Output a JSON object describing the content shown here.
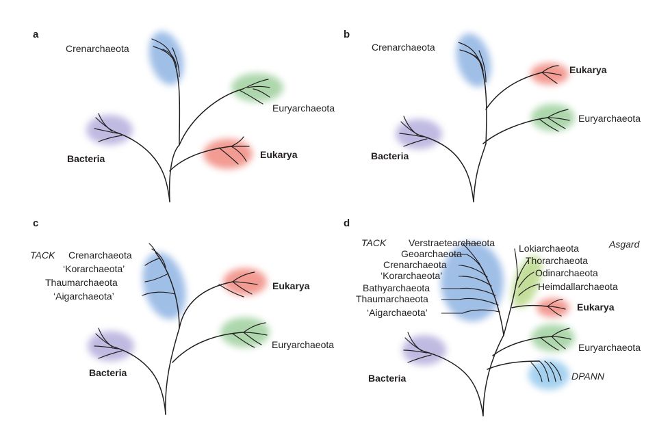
{
  "colors": {
    "crenarchaeota": "#8fb4e3",
    "euryarchaeota": "#9fd09f",
    "eukarya": "#f08a80",
    "bacteria": "#b9b3de",
    "tack": "#8fb4e3",
    "asgard": "#b9d98a",
    "dpann": "#9ccdee",
    "line": "#231f20"
  },
  "panels": {
    "a": {
      "letter": "a",
      "crenarchaeota": "Crenarchaeota",
      "euryarchaeota": "Euryarchaeota",
      "bacteria": "Bacteria",
      "eukarya": "Eukarya"
    },
    "b": {
      "letter": "b",
      "crenarchaeota": "Crenarchaeota",
      "eukarya": "Eukarya",
      "euryarchaeota": "Euryarchaeota",
      "bacteria": "Bacteria"
    },
    "c": {
      "letter": "c",
      "tack": "TACK",
      "tack_members": [
        "Crenarchaeota",
        "‘Korarchaeota’",
        "Thaumarchaeota",
        "‘Aigarchaeota’"
      ],
      "eukarya": "Eukarya",
      "euryarchaeota": "Euryarchaeota",
      "bacteria": "Bacteria"
    },
    "d": {
      "letter": "d",
      "tack": "TACK",
      "tack_members": [
        "Verstraetearchaeota",
        "Geoarchaeota",
        "Crenarchaeota",
        "‘Korarchaeota’",
        "Bathyarchaeota",
        "Thaumarchaeota",
        "‘Aigarchaeota’"
      ],
      "asgard": "Asgard",
      "asgard_members": [
        "Lokiarchaeota",
        "Thorarchaeota",
        "Odinarchaeota",
        "Heimdallarchaeota"
      ],
      "eukarya": "Eukarya",
      "euryarchaeota": "Euryarchaeota",
      "dpann": "DPANN",
      "bacteria": "Bacteria"
    }
  }
}
